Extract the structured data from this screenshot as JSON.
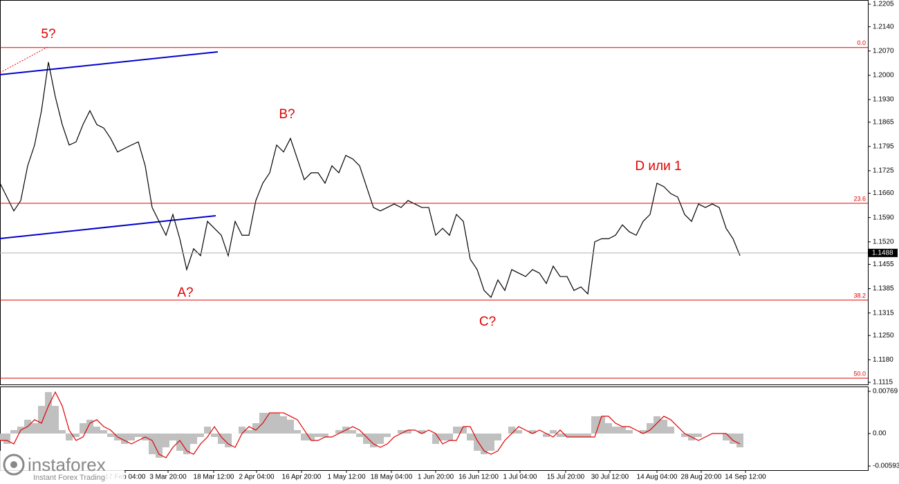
{
  "chart_data": [
    {
      "type": "line",
      "series": [
        {
          "color": "#000000",
          "values": [
            1.1689,
            1.1649,
            1.1609,
            1.1639,
            1.1739,
            1.1799,
            1.1898,
            1.2038,
            1.1938,
            1.1858,
            1.1799,
            1.1808,
            1.1858,
            1.1898,
            1.1858,
            1.1848,
            1.1818,
            1.1779,
            1.1789,
            1.1799,
            1.1808,
            1.1739,
            1.1619,
            1.1579,
            1.1539,
            1.1599,
            1.1529,
            1.144,
            1.15,
            1.148,
            1.1579,
            1.1559,
            1.1539,
            1.148,
            1.1579,
            1.1539,
            1.1539,
            1.1639,
            1.1689,
            1.1719,
            1.1799,
            1.1779,
            1.1818,
            1.1759,
            1.1699,
            1.1719,
            1.1719,
            1.1689,
            1.1739,
            1.1719,
            1.1769,
            1.1759,
            1.1739,
            1.1679,
            1.1619,
            1.1609,
            1.1619,
            1.1629,
            1.1619,
            1.1639,
            1.1629,
            1.1619,
            1.1619,
            1.1539,
            1.1559,
            1.1539,
            1.1599,
            1.1579,
            1.147,
            1.144,
            1.138,
            1.136,
            1.141,
            1.138,
            1.144,
            1.143,
            1.142,
            1.144,
            1.143,
            1.14,
            1.145,
            1.142,
            1.142,
            1.138,
            1.139,
            1.137,
            1.152,
            1.1529,
            1.1529,
            1.1539,
            1.1569,
            1.1549,
            1.1539,
            1.1579,
            1.1599,
            1.1689,
            1.1679,
            1.1659,
            1.1649,
            1.1599,
            1.1579,
            1.1629,
            1.1619,
            1.1629,
            1.1619,
            1.1559,
            1.1529,
            1.148
          ]
        }
      ],
      "xlim": [
        0,
        125.5
      ],
      "ylim": [
        1.1109,
        1.2217
      ],
      "yticks": [
        1.2205,
        {
          "value": 1.214,
          "label": "1.2140"
        },
        {
          "value": 1.207,
          "label": "1.2070"
        },
        {
          "value": 1.2,
          "label": "1.2000"
        },
        {
          "value": 1.193,
          "label": "1.1930"
        },
        1.1865,
        1.1795,
        1.1725,
        {
          "value": 1.166,
          "label": "1.1660"
        },
        {
          "value": 1.159,
          "label": "1.1590"
        },
        {
          "value": 1.152,
          "label": "1.1520"
        },
        1.1455,
        1.1385,
        1.1315,
        {
          "value": 1.125,
          "label": "1.1250"
        },
        {
          "value": 1.118,
          "label": "1.1180"
        },
        1.1115
      ],
      "xticks": [
        {
          "value": 18.1,
          "label": "17 Feb 04:00"
        },
        {
          "value": 24.3,
          "label": "3 Mar 20:00"
        },
        {
          "value": 30.9,
          "label": "18 Mar 12:00"
        },
        {
          "value": 37.1,
          "label": "2 Apr 04:00"
        },
        {
          "value": 43.6,
          "label": "16 Apr 20:00"
        },
        {
          "value": 50.1,
          "label": "1 May 12:00"
        },
        {
          "value": 56.6,
          "label": "18 May 04:00"
        },
        {
          "value": 63.0,
          "label": "1 Jun 20:00"
        },
        {
          "value": 69.2,
          "label": "16 Jun 12:00"
        },
        {
          "value": 75.2,
          "label": "1 Jul 04:00"
        },
        {
          "value": 81.8,
          "label": "15 Jul 20:00"
        },
        {
          "value": 88.2,
          "label": "30 Jul 12:00"
        },
        {
          "value": 95.0,
          "label": "14 Aug 04:00"
        },
        {
          "value": 101.4,
          "label": "28 Aug 20:00"
        },
        {
          "value": 107.8,
          "label": "14 Sep 12:00"
        }
      ],
      "current_price": 1.1488,
      "levels": [
        {
          "name": "0.0",
          "price": 1.208
        },
        {
          "name": "23.6",
          "price": 1.1631
        },
        {
          "name": "38.2",
          "price": 1.1352
        },
        {
          "name": "50.0",
          "price": 1.1127
        }
      ],
      "level_color": "#e00000",
      "annotations": [
        {
          "text": "5?",
          "x": 7.0,
          "y": 1.2117
        },
        {
          "text": "A?",
          "x": 26.8,
          "y": 1.1372
        },
        {
          "text": "B?",
          "x": 41.5,
          "y": 1.1886
        },
        {
          "text": "C?",
          "x": 70.5,
          "y": 1.1288
        },
        {
          "text": "D или 1",
          "x": 95.2,
          "y": 1.1737
        }
      ],
      "annotation_color": "#e00000"
    },
    {
      "type": "macd",
      "xlim": [
        0,
        125.5
      ],
      "ylim": [
        -0.00668,
        0.00845
      ],
      "yticks": [
        0.00769,
        {
          "value": 0,
          "label": "0.00"
        },
        -0.00593
      ],
      "histogram": {
        "color": "#c0c0c0",
        "values": [
          -0.00126,
          -0.00189,
          0.00063,
          0.00126,
          0.00252,
          0.00189,
          0.00504,
          0.00756,
          0.00504,
          0.00063,
          -0.00126,
          -0.00063,
          0.00189,
          0.00252,
          0.00126,
          0.00063,
          -0.00063,
          -0.00126,
          -0.00189,
          -0.00126,
          -0.00063,
          -0.00126,
          -0.00378,
          -0.00441,
          -0.00252,
          -0.00126,
          -0.00315,
          -0.00378,
          -0.00189,
          -0.00063,
          0.00126,
          -0.00063,
          -0.00189,
          -0.00252,
          0,
          0.00126,
          0.00063,
          0.00189,
          0.00378,
          0.00378,
          0.00378,
          0.00315,
          0.00252,
          0.00063,
          -0.00126,
          -0.00126,
          -0.00063,
          -0.00063,
          0,
          0.00063,
          0.00126,
          0.00063,
          -0.00063,
          -0.00189,
          -0.00252,
          -0.00189,
          -0.00063,
          0,
          0.00063,
          0.00063,
          0,
          0.00063,
          0,
          -0.00189,
          -0.00126,
          -0.00126,
          0.00126,
          0.00126,
          -0.00126,
          -0.00315,
          -0.00378,
          -0.00315,
          -0.00126,
          0,
          0.00126,
          0.00063,
          0,
          0.00063,
          0,
          -0.00063,
          0.00063,
          -0.00063,
          -0.00063,
          -0.00063,
          -0.00063,
          -0.00063,
          0.00315,
          0.00315,
          0.00189,
          0.00126,
          0.00126,
          0.00063,
          0,
          0.00063,
          0.00189,
          0.00315,
          0.00252,
          0.00126,
          0,
          -0.00063,
          -0.00126,
          -0.00063,
          0,
          0,
          0,
          -0.00126,
          -0.00189,
          -0.00252
        ]
      },
      "signal": {
        "color": "#e00000",
        "values": [
          -0.00126,
          -0.00126,
          -0.00189,
          0.00063,
          0.00126,
          0.00252,
          0.00189,
          0.00504,
          0.00756,
          0.00504,
          0.00063,
          -0.00126,
          -0.00063,
          0.00189,
          0.00252,
          0.00126,
          0.00063,
          -0.00063,
          -0.00126,
          -0.00189,
          -0.00126,
          -0.00063,
          -0.00126,
          -0.00378,
          -0.00441,
          -0.00252,
          -0.00126,
          -0.00315,
          -0.00378,
          -0.00189,
          -0.00063,
          0.00126,
          -0.00063,
          -0.00189,
          -0.00252,
          0,
          0.00126,
          0.00063,
          0.00189,
          0.00378,
          0.00378,
          0.00378,
          0.00315,
          0.00252,
          0.00063,
          -0.00126,
          -0.00126,
          -0.00063,
          -0.00063,
          0,
          0.00063,
          0.00126,
          0.00063,
          -0.00063,
          -0.00189,
          -0.00252,
          -0.00189,
          -0.00063,
          0,
          0.00063,
          0.00063,
          0,
          0.00063,
          0,
          -0.00189,
          -0.00126,
          -0.00126,
          0.00126,
          0.00126,
          -0.00126,
          -0.00315,
          -0.00378,
          -0.00315,
          -0.00126,
          0,
          0.00126,
          0.00063,
          0,
          0.00063,
          0,
          -0.00063,
          0.00063,
          -0.00063,
          -0.00063,
          -0.00063,
          -0.00063,
          -0.00063,
          0.00315,
          0.00315,
          0.00189,
          0.00126,
          0.00126,
          0.00063,
          0,
          0.00063,
          0.00189,
          0.00315,
          0.00252,
          0.00126,
          0,
          -0.00063,
          -0.00126,
          -0.00063,
          0,
          0,
          0,
          -0.00126,
          -0.00189
        ]
      }
    }
  ],
  "logo": {
    "name": "instaforex",
    "tagline": "Instant Forex Trading"
  }
}
